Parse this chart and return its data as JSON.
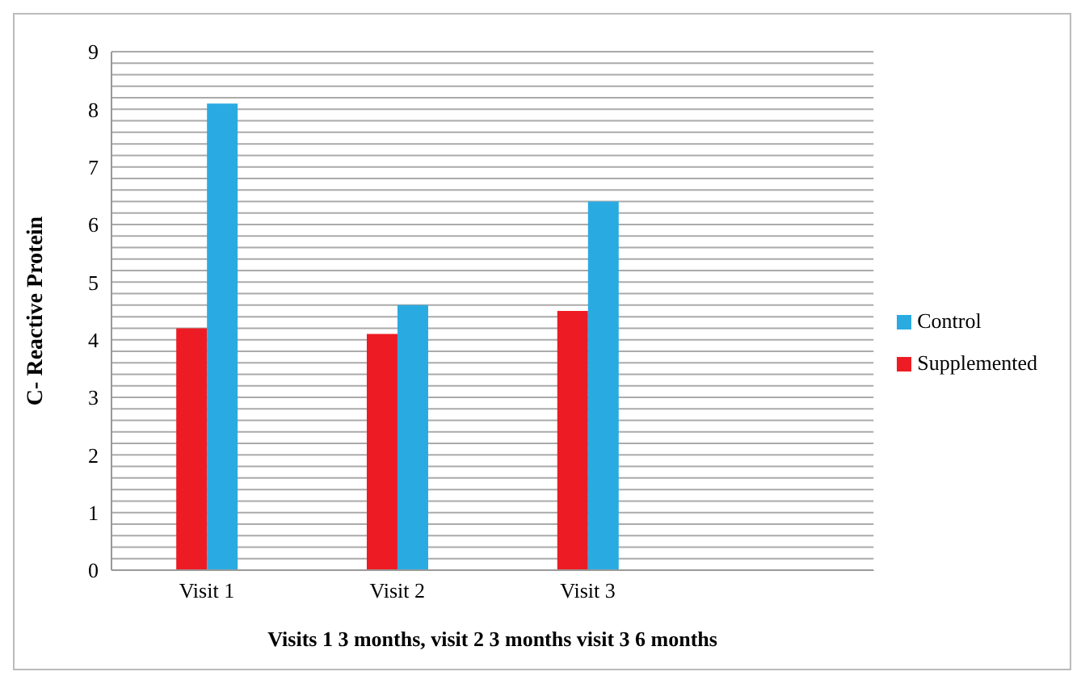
{
  "chart_data": {
    "type": "bar",
    "ylabel": "C- Reactive  Protein",
    "xlabel": "Visits  1 3 months, visit 2 3 months  visit 3 6 months",
    "categories": [
      "Visit 1",
      "Visit 2",
      "Visit 3",
      null
    ],
    "series": [
      {
        "name": "Supplemented",
        "color": "#ed1c24",
        "values": [
          4.2,
          4.1,
          4.5,
          null
        ]
      },
      {
        "name": "Control",
        "color": "#29abe2",
        "values": [
          8.1,
          4.6,
          6.4,
          null
        ]
      }
    ],
    "ylim": [
      0,
      9
    ],
    "yticks": [
      0,
      {
        "value": 0.2,
        "label": null
      },
      {
        "value": 0.4,
        "label": null
      },
      {
        "value": 0.6,
        "label": null
      },
      {
        "value": 0.8,
        "label": null
      },
      1,
      {
        "value": 1.2,
        "label": null
      },
      {
        "value": 1.4,
        "label": null
      },
      {
        "value": 1.6,
        "label": null
      },
      {
        "value": 1.8,
        "label": null
      },
      2,
      {
        "value": 2.2,
        "label": null
      },
      {
        "value": 2.4,
        "label": null
      },
      {
        "value": 2.6,
        "label": null
      },
      {
        "value": 2.8,
        "label": null
      },
      3,
      {
        "value": 3.2,
        "label": null
      },
      {
        "value": 3.4,
        "label": null
      },
      {
        "value": 3.6,
        "label": null
      },
      {
        "value": 3.8,
        "label": null
      },
      4,
      {
        "value": 4.2,
        "label": null
      },
      {
        "value": 4.4,
        "label": null
      },
      {
        "value": 4.6,
        "label": null
      },
      {
        "value": 4.8,
        "label": null
      },
      5,
      {
        "value": 5.2,
        "label": null
      },
      {
        "value": 5.4,
        "label": null
      },
      {
        "value": 5.6,
        "label": null
      },
      {
        "value": 5.8,
        "label": null
      },
      6,
      {
        "value": 6.2,
        "label": null
      },
      {
        "value": 6.4,
        "label": null
      },
      {
        "value": 6.6,
        "label": null
      },
      {
        "value": 6.8,
        "label": null
      },
      7,
      {
        "value": 7.2,
        "label": null
      },
      {
        "value": 7.4,
        "label": null
      },
      {
        "value": 7.6,
        "label": null
      },
      {
        "value": 7.8,
        "label": null
      },
      8,
      {
        "value": 8.2,
        "label": null
      },
      {
        "value": 8.4,
        "label": null
      },
      {
        "value": 8.6,
        "label": null
      },
      {
        "value": 8.8,
        "label": null
      },
      9
    ],
    "grid": "y",
    "legend": "right"
  }
}
